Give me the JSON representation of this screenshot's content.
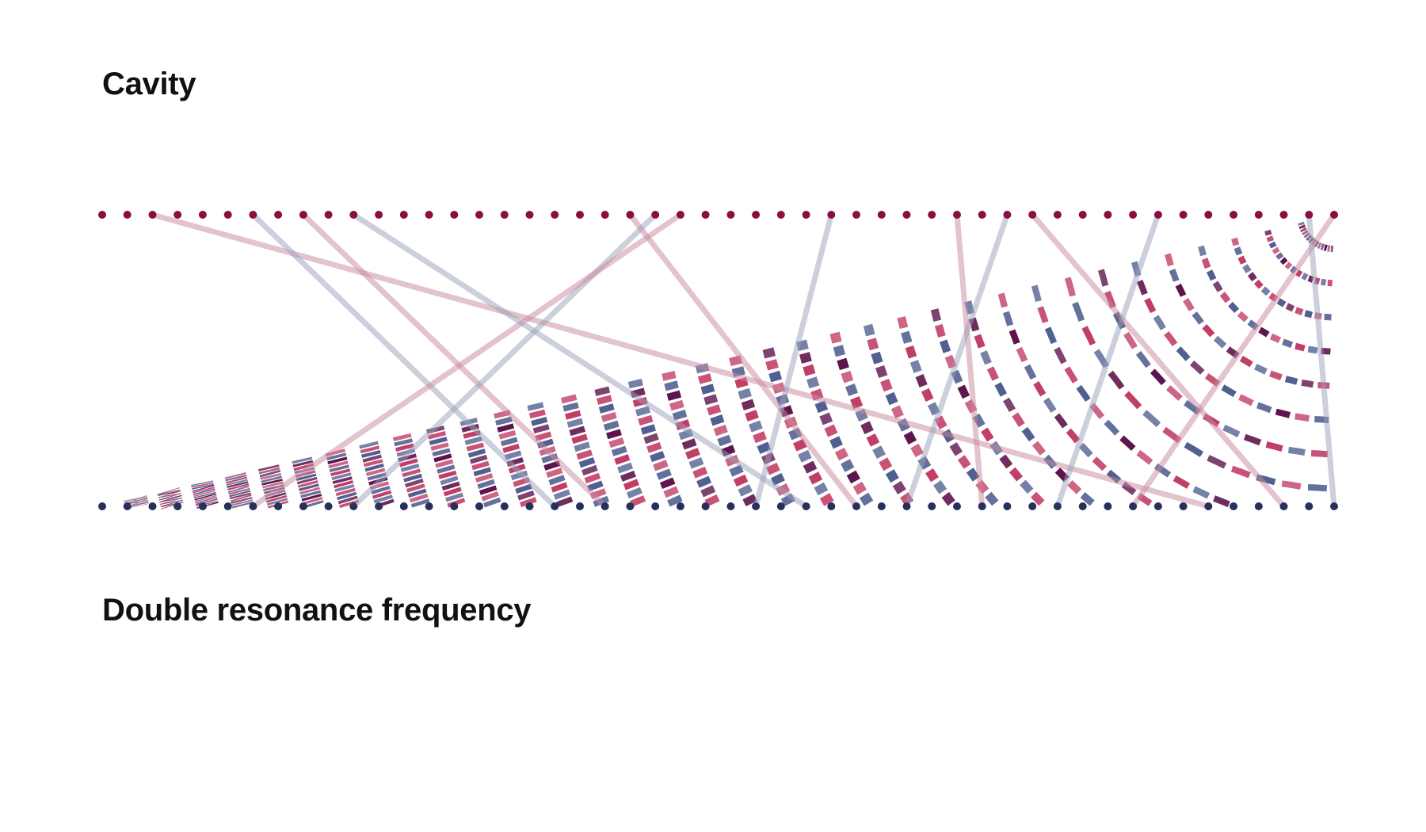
{
  "labels": {
    "top": "Cavity",
    "bottom": "Double resonance frequency"
  },
  "colors": {
    "top_dots": "#8b0e42",
    "bottom_dots": "#26305a",
    "ribbon_red": "#c03b64",
    "ribbon_blue": "#4e5d8e",
    "ribbon_dark": "#5a1048",
    "link_red": "#c7889d",
    "link_blue": "#9aa0ba"
  },
  "diagram": {
    "top_count": 50,
    "bottom_count": 50,
    "links": [
      [
        2,
        44
      ],
      [
        6,
        18
      ],
      [
        8,
        20
      ],
      [
        10,
        28
      ],
      [
        21,
        30
      ],
      [
        22,
        10
      ],
      [
        23,
        6
      ],
      [
        29,
        26
      ],
      [
        34,
        35
      ],
      [
        36,
        32
      ],
      [
        37,
        47
      ],
      [
        42,
        38
      ],
      [
        49,
        41
      ],
      [
        48,
        49
      ]
    ]
  }
}
